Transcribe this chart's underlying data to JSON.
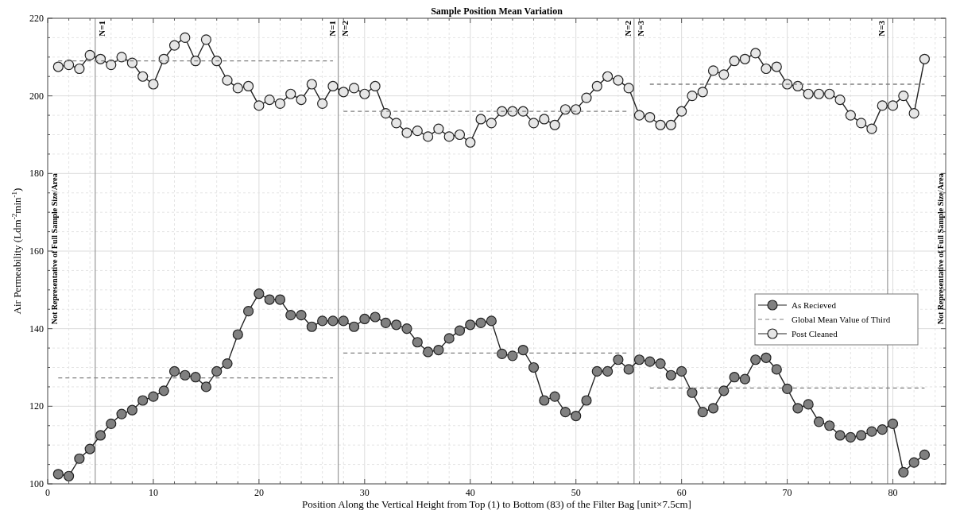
{
  "chart_data": {
    "type": "line",
    "title": "Sample Position Mean Variation",
    "xlabel": "Position Along the Vertical Height from Top (1) to Bottom (83) of the Filter Bag [unit×7.5cm]",
    "ylabel": "Air Permeability (Ldm$^{-2}$min$^{-1}$)",
    "x": [
      1,
      2,
      3,
      4,
      5,
      6,
      7,
      8,
      9,
      10,
      11,
      12,
      13,
      14,
      15,
      16,
      17,
      18,
      19,
      20,
      21,
      22,
      23,
      24,
      25,
      26,
      27,
      28,
      29,
      30,
      31,
      32,
      33,
      34,
      35,
      36,
      37,
      38,
      39,
      40,
      41,
      42,
      43,
      44,
      45,
      46,
      47,
      48,
      49,
      50,
      51,
      52,
      53,
      54,
      55,
      56,
      57,
      58,
      59,
      60,
      61,
      62,
      63,
      64,
      65,
      66,
      67,
      68,
      69,
      70,
      71,
      72,
      73,
      74,
      75,
      76,
      77,
      78,
      79,
      80,
      81,
      82,
      83
    ],
    "series": [
      {
        "name": "As Recieved",
        "color": "#808080",
        "marker": "circle",
        "line_style": "solid",
        "values": [
          102.5,
          102,
          106.5,
          109,
          112.5,
          115.5,
          118,
          119,
          121.5,
          122.5,
          124,
          129,
          128,
          127.5,
          125,
          129,
          131,
          138.5,
          144.5,
          149,
          147.5,
          147.5,
          143.5,
          143.5,
          140.5,
          142,
          142,
          142,
          140.5,
          142.5,
          143,
          141.5,
          141,
          140,
          136.5,
          134,
          134.5,
          137.5,
          139.5,
          141,
          141.5,
          142,
          133.5,
          133,
          134.5,
          130,
          121.5,
          122.5,
          118.5,
          117.5,
          121.5,
          129,
          129,
          132,
          129.5,
          132,
          131.5,
          131,
          128,
          129,
          123.5,
          118.5,
          119.5,
          124,
          127.5,
          127,
          132,
          132.5,
          129.5,
          124.5,
          119.5,
          120.5,
          116,
          115,
          112.5,
          112,
          112.5,
          113.5,
          114,
          115.5,
          103,
          105.5,
          107.5
        ]
      },
      {
        "name": "Global Mean Value of Third",
        "color": "#808080",
        "marker": "none",
        "line_style": "dashed",
        "x": [
          1,
          27,
          27.5,
          28,
          55,
          55.5,
          57,
          83
        ],
        "values": [
          127.3,
          127.3,
          null,
          133.7,
          133.7,
          null,
          124.7,
          124.7
        ]
      },
      {
        "name": "Post Cleaned",
        "color": "#e6e6e6",
        "marker": "circle",
        "line_style": "solid",
        "values": [
          207.5,
          208,
          207,
          210.5,
          209.5,
          208,
          210,
          208.5,
          205,
          203,
          209.5,
          213,
          215,
          209,
          214.5,
          209,
          204,
          202,
          202.5,
          197.5,
          199,
          198,
          200.5,
          199,
          203,
          198,
          202.5,
          201,
          202,
          200.5,
          202.5,
          195.5,
          193,
          190.5,
          191,
          189.5,
          191.5,
          189.5,
          190,
          188,
          194,
          193,
          196,
          196,
          196,
          193,
          194,
          192.5,
          196.5,
          196.5,
          199.5,
          202.5,
          205,
          204,
          202,
          195,
          194.5,
          192.5,
          192.5,
          196,
          200,
          201,
          206.5,
          205.5,
          209,
          209.5,
          211,
          207,
          207.5,
          203,
          202.5,
          200.5,
          200.5,
          200.5,
          199,
          195,
          193,
          191.5,
          197.5,
          197.5,
          200,
          195.5,
          209.5
        ]
      },
      {
        "color": "#808080",
        "marker": "none",
        "line_style": "dashed",
        "x": [
          1,
          27,
          27.5,
          28,
          55,
          55.5,
          57,
          83
        ],
        "values": [
          209,
          209,
          null,
          196,
          196,
          null,
          203,
          203
        ]
      }
    ],
    "xlim": [
      0,
      85
    ],
    "ylim": [
      100,
      220
    ],
    "xticks": [
      0,
      {
        "value": 2,
        "label": null
      },
      {
        "value": 4,
        "label": null
      },
      {
        "value": 6,
        "label": null
      },
      {
        "value": 8,
        "label": null
      },
      10,
      {
        "value": 12,
        "label": null
      },
      {
        "value": 14,
        "label": null
      },
      {
        "value": 16,
        "label": null
      },
      {
        "value": 18,
        "label": null
      },
      20,
      {
        "value": 22,
        "label": null
      },
      {
        "value": 24,
        "label": null
      },
      {
        "value": 26,
        "label": null
      },
      {
        "value": 28,
        "label": null
      },
      30,
      {
        "value": 32,
        "label": null
      },
      {
        "value": 34,
        "label": null
      },
      {
        "value": 36,
        "label": null
      },
      {
        "value": 38,
        "label": null
      },
      40,
      {
        "value": 42,
        "label": null
      },
      {
        "value": 44,
        "label": null
      },
      {
        "value": 46,
        "label": null
      },
      {
        "value": 48,
        "label": null
      },
      50,
      {
        "value": 52,
        "label": null
      },
      {
        "value": 54,
        "label": null
      },
      {
        "value": 56,
        "label": null
      },
      {
        "value": 58,
        "label": null
      },
      60,
      {
        "value": 62,
        "label": null
      },
      {
        "value": 64,
        "label": null
      },
      {
        "value": 66,
        "label": null
      },
      {
        "value": 68,
        "label": null
      },
      70,
      {
        "value": 72,
        "label": null
      },
      {
        "value": 74,
        "label": null
      },
      {
        "value": 76,
        "label": null
      },
      {
        "value": 78,
        "label": null
      },
      80,
      {
        "value": 82,
        "label": null
      },
      {
        "value": 84,
        "label": null
      }
    ],
    "yticks": [
      100,
      {
        "value": 105,
        "label": null
      },
      {
        "value": 110,
        "label": null
      },
      {
        "value": 115,
        "label": null
      },
      120,
      {
        "value": 125,
        "label": null
      },
      {
        "value": 130,
        "label": null
      },
      {
        "value": 135,
        "label": null
      },
      140,
      {
        "value": 145,
        "label": null
      },
      {
        "value": 150,
        "label": null
      },
      {
        "value": 155,
        "label": null
      },
      160,
      {
        "value": 165,
        "label": null
      },
      {
        "value": 170,
        "label": null
      },
      {
        "value": 175,
        "label": null
      },
      180,
      {
        "value": 185,
        "label": null
      },
      {
        "value": 190,
        "label": null
      },
      {
        "value": 195,
        "label": null
      },
      200,
      {
        "value": 205,
        "label": null
      },
      {
        "value": 210,
        "label": null
      },
      {
        "value": 215,
        "label": null
      },
      220
    ],
    "grid": true,
    "legend": "right",
    "ref_lines": [
      {
        "axis": "x",
        "value": 4.5,
        "color": "#999999"
      },
      {
        "axis": "x",
        "value": 27.5,
        "color": "#999999"
      },
      {
        "axis": "x",
        "value": 55.5,
        "color": "#999999"
      },
      {
        "axis": "x",
        "value": 79.5,
        "color": "#999999"
      }
    ],
    "annotations": [
      "N=1",
      "N=1",
      "N=2",
      "N=2",
      "N=3",
      "N=3",
      "Not Representative of Full Sample Size/Area",
      "Not Representative of Full Sample Size/Area"
    ]
  }
}
